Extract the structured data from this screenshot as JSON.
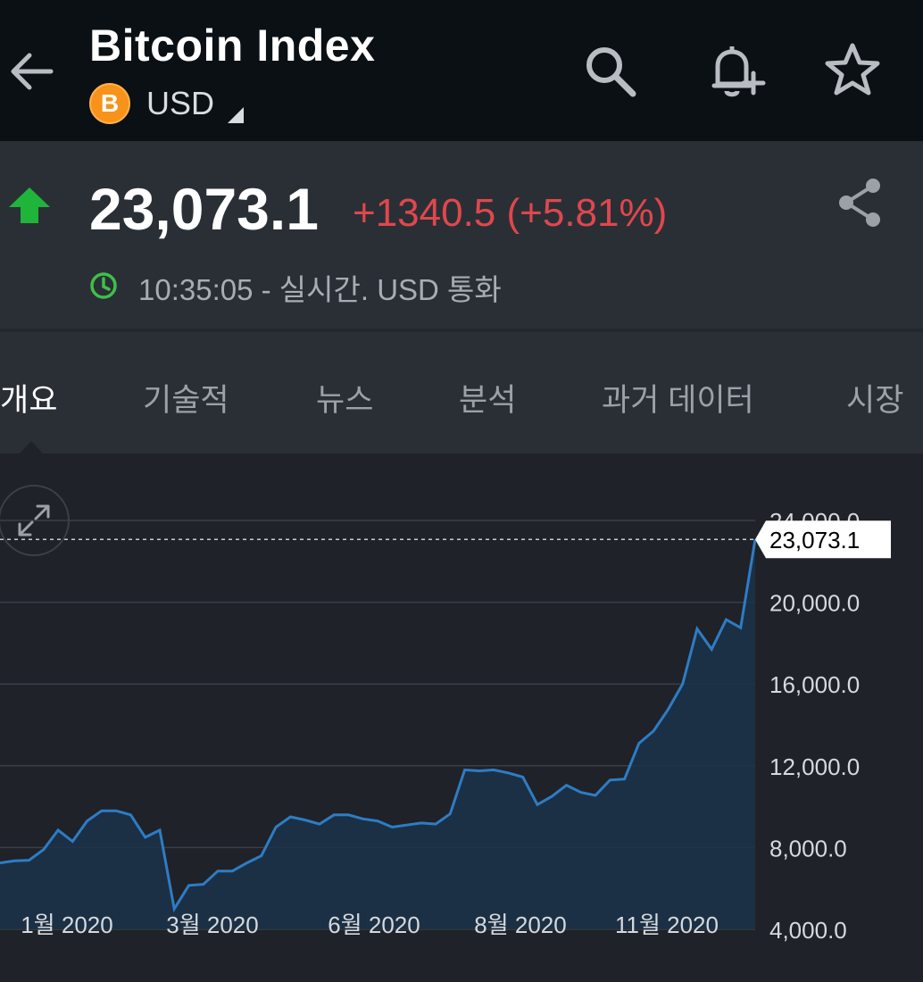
{
  "header": {
    "title": "Bitcoin Index",
    "currency": "USD",
    "coin_symbol": "B",
    "icons": [
      "back-arrow-icon",
      "search-icon",
      "add-alert-bell-icon",
      "star-icon"
    ]
  },
  "quote": {
    "price": "23,073.1",
    "change": "+1340.5 (+5.81%)",
    "time_info": "10:35:05 - 실시간. USD 통화",
    "direction": "up",
    "up_color": "#1fb53a",
    "change_color": "#e0474c"
  },
  "tabs": [
    {
      "label": "개요",
      "active": true
    },
    {
      "label": "기술적",
      "active": false
    },
    {
      "label": "뉴스",
      "active": false
    },
    {
      "label": "분석",
      "active": false
    },
    {
      "label": "과거 데이터",
      "active": false
    },
    {
      "label": "시장",
      "active": false
    }
  ],
  "chart_data": {
    "type": "area",
    "current_value_label": "23,073.1",
    "current_value": 23073.1,
    "ylim": [
      4000,
      24000
    ],
    "y_ticks": [
      "24,000.0",
      "20,000.0",
      "16,000.0",
      "12,000.0",
      "8,000.0",
      "4,000.0"
    ],
    "y_tick_values": [
      24000,
      20000,
      16000,
      12000,
      8000,
      4000
    ],
    "x_ticks": [
      "1월 2020",
      "3월 2020",
      "6월 2020",
      "8월 2020",
      "11월 2020"
    ],
    "line_color": "#2e7cc4",
    "values": [
      7250,
      7350,
      7380,
      7900,
      8850,
      8300,
      9300,
      9800,
      9800,
      9600,
      8500,
      8850,
      5000,
      6150,
      6200,
      6850,
      6850,
      7250,
      7600,
      9000,
      9500,
      9350,
      9150,
      9600,
      9600,
      9400,
      9300,
      9000,
      9100,
      9200,
      9150,
      9650,
      11800,
      11750,
      11800,
      11650,
      11450,
      10100,
      10500,
      11050,
      10700,
      10550,
      11300,
      11350,
      13100,
      13700,
      14750,
      16000,
      18700,
      17700,
      19150,
      18750,
      23073
    ]
  }
}
